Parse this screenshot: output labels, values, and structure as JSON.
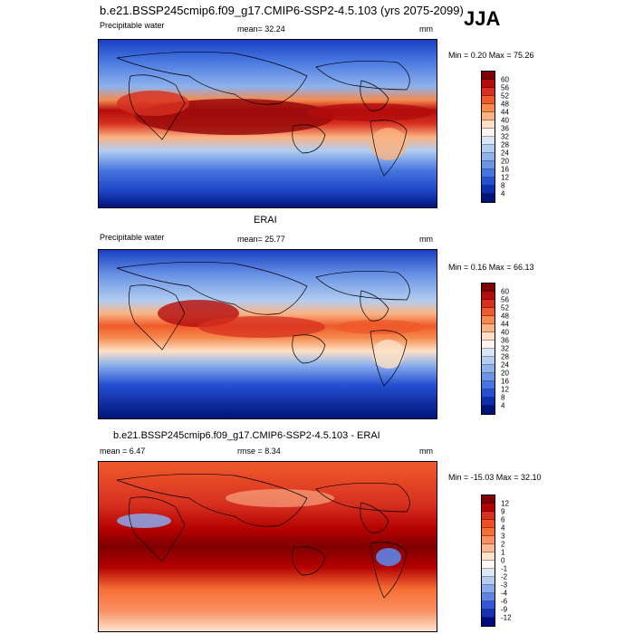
{
  "header": {
    "title": "b.e21.BSSP245cmip6.f09_g17.CMIP6-SSP2-4.5.103 (yrs 2075-2099)",
    "season": "JJA"
  },
  "panels": [
    {
      "variable": "Precipitable water",
      "mean_label": "mean=  32.24",
      "units": "mm",
      "stats": "Min =   0.20 Max =  75.26",
      "colorbar_ticks": [
        "60",
        "56",
        "52",
        "48",
        "44",
        "40",
        "36",
        "32",
        "28",
        "24",
        "20",
        "16",
        "12",
        "8",
        "4"
      ]
    },
    {
      "title": "ERAI",
      "variable": "Precipitable water",
      "mean_label": "mean=  25.77",
      "units": "mm",
      "stats": "Min =   0.16 Max =  66.13",
      "colorbar_ticks": [
        "60",
        "56",
        "52",
        "48",
        "44",
        "40",
        "36",
        "32",
        "28",
        "24",
        "20",
        "16",
        "12",
        "8",
        "4"
      ]
    },
    {
      "title": "b.e21.BSSP245cmip6.f09_g17.CMIP6-SSP2-4.5.103 - ERAI",
      "mean_label": "mean =   6.47",
      "rmse_label": "rmse =   8.34",
      "units": "mm",
      "stats": "Min = -15.03 Max =  32.10",
      "colorbar_ticks": [
        "12",
        "9",
        "6",
        "4",
        "3",
        "2",
        "1",
        "0",
        "-1",
        "-2",
        "-3",
        "-4",
        "-6",
        "-9",
        "-12"
      ]
    }
  ],
  "colors": {
    "abs_scale": [
      "#7f0000",
      "#b40d0d",
      "#d7301f",
      "#ef5a2a",
      "#f58a4e",
      "#fbb282",
      "#fde0c5",
      "#fff5ee",
      "#d6e6f7",
      "#b3cdf0",
      "#8fb2ec",
      "#6a94e6",
      "#4575e0",
      "#2450d2",
      "#0b2fb0",
      "#00137a"
    ],
    "diff_scale": [
      "#7f0000",
      "#b30000",
      "#d7301f",
      "#ef4e1e",
      "#f56e34",
      "#fa9162",
      "#fcb790",
      "#fee3cf",
      "#fff8f2",
      "#dbe8f8",
      "#b4cbf2",
      "#8aa9ec",
      "#5d83e3",
      "#3358d6",
      "#1432b5",
      "#000a7a"
    ]
  }
}
